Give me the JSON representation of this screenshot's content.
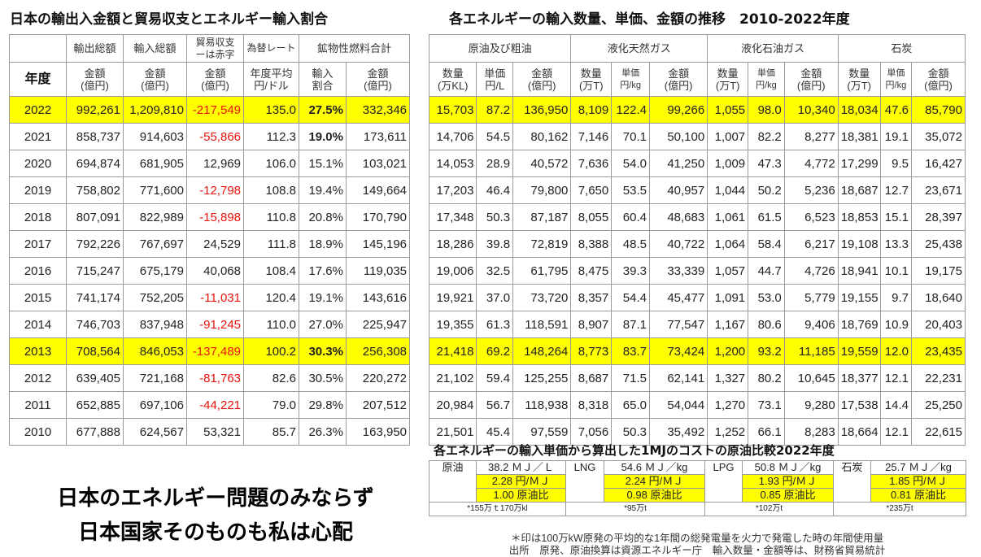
{
  "left": {
    "title": "日本の輸出入金額と貿易収支とエネルギー輸入割合",
    "headers": {
      "year": "年度",
      "export_top": "輸出総額",
      "import_top": "輸入総額",
      "balance_top": "貿易収支\nーは赤字",
      "rate_top": "為替レート",
      "mineral_top": "鉱物性燃料合計",
      "amount": "金額\n(億円)",
      "rate_sub": "年度平均\n円/ドル",
      "share_sub": "輸入\n割合"
    },
    "rows": [
      {
        "year": "2022",
        "exp": "992,261",
        "imp": "1,209,810",
        "bal": "-217,549",
        "rate": "135.0",
        "share": "27.5%",
        "min": "332,346",
        "hl": true,
        "bold": true
      },
      {
        "year": "2021",
        "exp": "858,737",
        "imp": "914,603",
        "bal": "-55,866",
        "rate": "112.3",
        "share": "19.0%",
        "min": "173,611",
        "hl": false,
        "bold": true
      },
      {
        "year": "2020",
        "exp": "694,874",
        "imp": "681,905",
        "bal": "12,969",
        "rate": "106.0",
        "share": "15.1%",
        "min": "103,021",
        "hl": false,
        "bold": false
      },
      {
        "year": "2019",
        "exp": "758,802",
        "imp": "771,600",
        "bal": "-12,798",
        "rate": "108.8",
        "share": "19.4%",
        "min": "149,664",
        "hl": false,
        "bold": false
      },
      {
        "year": "2018",
        "exp": "807,091",
        "imp": "822,989",
        "bal": "-15,898",
        "rate": "110.8",
        "share": "20.8%",
        "min": "170,790",
        "hl": false,
        "bold": false
      },
      {
        "year": "2017",
        "exp": "792,226",
        "imp": "767,697",
        "bal": "24,529",
        "rate": "111.8",
        "share": "18.9%",
        "min": "145,196",
        "hl": false,
        "bold": false
      },
      {
        "year": "2016",
        "exp": "715,247",
        "imp": "675,179",
        "bal": "40,068",
        "rate": "108.4",
        "share": "17.6%",
        "min": "119,035",
        "hl": false,
        "bold": false
      },
      {
        "year": "2015",
        "exp": "741,174",
        "imp": "752,205",
        "bal": "-11,031",
        "rate": "120.4",
        "share": "19.1%",
        "min": "143,616",
        "hl": false,
        "bold": false
      },
      {
        "year": "2014",
        "exp": "746,703",
        "imp": "837,948",
        "bal": "-91,245",
        "rate": "110.0",
        "share": "27.0%",
        "min": "225,947",
        "hl": false,
        "bold": false
      },
      {
        "year": "2013",
        "exp": "708,564",
        "imp": "846,053",
        "bal": "-137,489",
        "rate": "100.2",
        "share": "30.3%",
        "min": "256,308",
        "hl": true,
        "bold": true
      },
      {
        "year": "2012",
        "exp": "639,405",
        "imp": "721,168",
        "bal": "-81,763",
        "rate": "82.6",
        "share": "30.5%",
        "min": "220,272",
        "hl": false,
        "bold": false
      },
      {
        "year": "2011",
        "exp": "652,885",
        "imp": "697,106",
        "bal": "-44,221",
        "rate": "79.0",
        "share": "29.8%",
        "min": "207,512",
        "hl": false,
        "bold": false
      },
      {
        "year": "2010",
        "exp": "677,888",
        "imp": "624,567",
        "bal": "53,321",
        "rate": "85.7",
        "share": "26.3%",
        "min": "163,950",
        "hl": false,
        "bold": false
      }
    ]
  },
  "right": {
    "title": "各エネルギーの輸入数量、単価、金額の推移　2010-2022年度",
    "groups": [
      "原油及び粗油",
      "液化天然ガス",
      "液化石油ガス",
      "石炭"
    ],
    "sub": {
      "oil_qty": "数量\n(万KL)",
      "oil_price": "単価\n円/L",
      "amount": "金額\n(億円)",
      "lng_qty": "数量\n(万T)",
      "lng_price": "単価\n円/kg",
      "lpg_qty": "数量\n(万T)",
      "lpg_price": "単価\n円/kg",
      "coal_qty": "数量\n(万T)",
      "coal_price": "単価\n円/kg"
    },
    "rows": [
      {
        "v": [
          "15,703",
          "87.2",
          "136,950",
          "8,109",
          "122.4",
          "99,266",
          "1,055",
          "98.0",
          "10,340",
          "18,034",
          "47.6",
          "85,790"
        ],
        "hl": true
      },
      {
        "v": [
          "14,706",
          "54.5",
          "80,162",
          "7,146",
          "70.1",
          "50,100",
          "1,007",
          "82.2",
          "8,277",
          "18,381",
          "19.1",
          "35,072"
        ],
        "hl": false
      },
      {
        "v": [
          "14,053",
          "28.9",
          "40,572",
          "7,636",
          "54.0",
          "41,250",
          "1,009",
          "47.3",
          "4,772",
          "17,299",
          "9.5",
          "16,427"
        ],
        "hl": false
      },
      {
        "v": [
          "17,203",
          "46.4",
          "79,800",
          "7,650",
          "53.5",
          "40,957",
          "1,044",
          "50.2",
          "5,236",
          "18,687",
          "12.7",
          "23,671"
        ],
        "hl": false
      },
      {
        "v": [
          "17,348",
          "50.3",
          "87,187",
          "8,055",
          "60.4",
          "48,683",
          "1,061",
          "61.5",
          "6,523",
          "18,853",
          "15.1",
          "28,397"
        ],
        "hl": false
      },
      {
        "v": [
          "18,286",
          "39.8",
          "72,819",
          "8,388",
          "48.5",
          "40,722",
          "1,064",
          "58.4",
          "6,217",
          "19,108",
          "13.3",
          "25,438"
        ],
        "hl": false
      },
      {
        "v": [
          "19,006",
          "32.5",
          "61,795",
          "8,475",
          "39.3",
          "33,339",
          "1,057",
          "44.7",
          "4,726",
          "18,941",
          "10.1",
          "19,175"
        ],
        "hl": false
      },
      {
        "v": [
          "19,921",
          "37.0",
          "73,720",
          "8,357",
          "54.4",
          "45,477",
          "1,091",
          "53.0",
          "5,779",
          "19,155",
          "9.7",
          "18,640"
        ],
        "hl": false
      },
      {
        "v": [
          "19,355",
          "61.3",
          "118,591",
          "8,907",
          "87.1",
          "77,547",
          "1,167",
          "80.6",
          "9,406",
          "18,769",
          "10.9",
          "20,403"
        ],
        "hl": false
      },
      {
        "v": [
          "21,418",
          "69.2",
          "148,264",
          "8,773",
          "83.7",
          "73,424",
          "1,200",
          "93.2",
          "11,185",
          "19,559",
          "12.0",
          "23,435"
        ],
        "hl": true
      },
      {
        "v": [
          "21,102",
          "59.4",
          "125,255",
          "8,687",
          "71.5",
          "62,141",
          "1,327",
          "80.2",
          "10,645",
          "18,377",
          "12.1",
          "22,231"
        ],
        "hl": false
      },
      {
        "v": [
          "20,984",
          "56.7",
          "118,938",
          "8,318",
          "65.0",
          "54,044",
          "1,270",
          "73.1",
          "9,280",
          "17,538",
          "14.4",
          "25,250"
        ],
        "hl": false
      },
      {
        "v": [
          "21,501",
          "45.4",
          "97,559",
          "7,056",
          "50.3",
          "35,492",
          "1,252",
          "66.1",
          "8,283",
          "18,664",
          "12.1",
          "22,615"
        ],
        "hl": false
      }
    ]
  },
  "mj": {
    "title": "各エネルギーの輸入単価から算出した1MJのコストの原油比較2022年度",
    "items": [
      {
        "name": "原油",
        "energy": "38.2 ＭＪ／Ｌ",
        "cost": "2.28 円/ＭＪ",
        "ratio": "1.00 原油比",
        "unit": "*155万ｔ170万kl"
      },
      {
        "name": "LNG",
        "energy": "54.6 ＭＪ／kg",
        "cost": "2.24 円/ＭＪ",
        "ratio": "0.98 原油比",
        "unit": "*95万t"
      },
      {
        "name": "LPG",
        "energy": "50.8 ＭＪ／kg",
        "cost": "1.93 円/ＭＪ",
        "ratio": "0.85 原油比",
        "unit": "*102万t"
      },
      {
        "name": "石炭",
        "energy": "25.7 ＭＪ／kg",
        "cost": "1.85 円/ＭＪ",
        "ratio": "0.81 原油比",
        "unit": "*235万t"
      }
    ],
    "note1": "＊印は100万kW原発の平均的な1年間の総発電量を火力で発電した時の年間使用量",
    "note2": "出所　原発、原油換算は資源エネルギー庁　輸入数量・金額等は、財務省貿易統計"
  },
  "caption": {
    "line1": "日本のエネルギー問題のみならず",
    "line2": "日本国家そのものも私は心配"
  },
  "colors": {
    "highlight": "#ffff00",
    "negative": "#e8140c",
    "grid": "#9a9a9a"
  }
}
